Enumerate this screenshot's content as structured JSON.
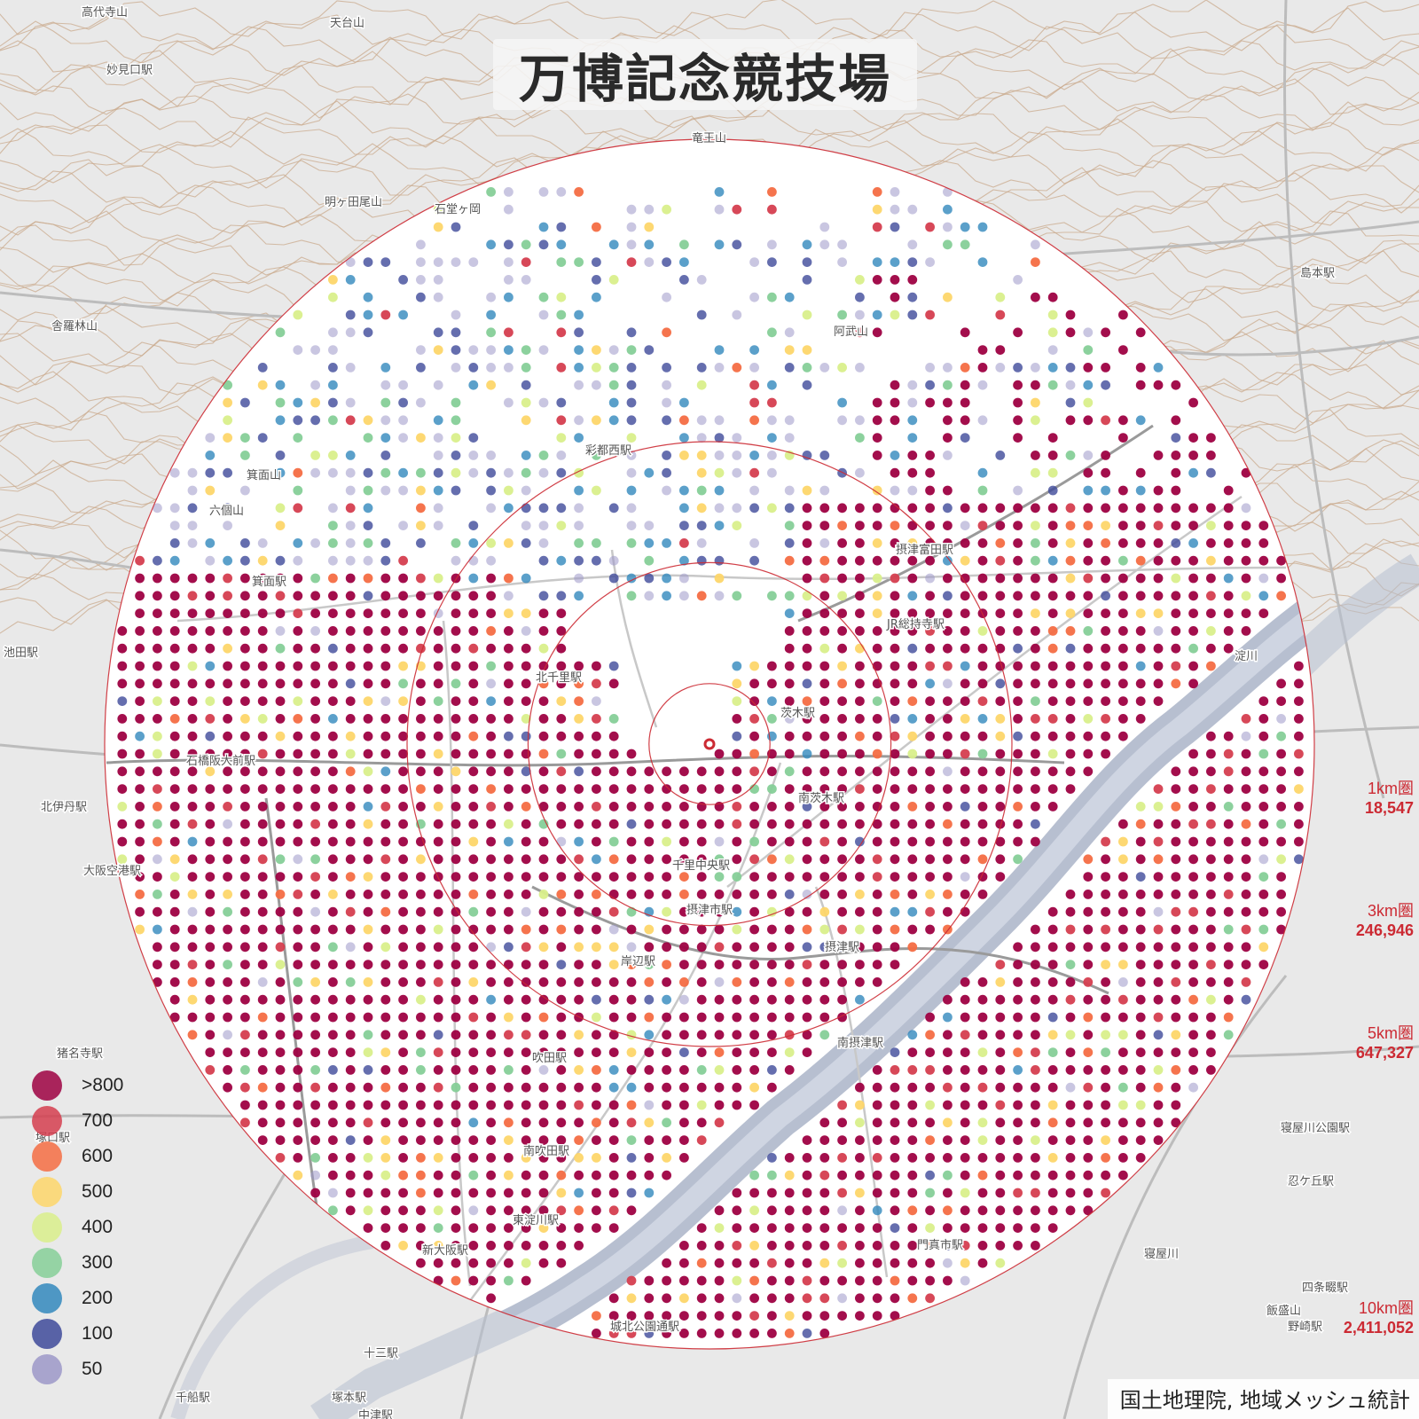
{
  "title": "万博記念競技場",
  "attribution": "国土地理院, 地域メッシュ統計",
  "legend": [
    {
      "label": ">800",
      "color": "#9e0142"
    },
    {
      "label": "700",
      "color": "#d53e4f"
    },
    {
      "label": "600",
      "color": "#f46d43"
    },
    {
      "label": "500",
      "color": "#fdd66a"
    },
    {
      "label": "400",
      "color": "#d9ef8b"
    },
    {
      "label": "300",
      "color": "#86cf98"
    },
    {
      "label": "200",
      "color": "#3288bd"
    },
    {
      "label": "100",
      "color": "#3e4a9a"
    },
    {
      "label": "50",
      "color": "#9c98c8"
    }
  ],
  "rings": [
    {
      "name": "1km圏",
      "value": "18,547",
      "radius_km": 1
    },
    {
      "name": "3km圏",
      "value": "246,946",
      "radius_km": 3
    },
    {
      "name": "5km圏",
      "value": "647,327",
      "radius_km": 5
    },
    {
      "name": "10km圏",
      "value": "2,411,052",
      "radius_km": 10
    }
  ],
  "colors": {
    "ring": "#cc2a33",
    "river": "#b7bfd0",
    "contour": "#c9a98c",
    "mask": "#ffffff",
    "background": "#e9e9e9"
  },
  "place_labels": [
    {
      "text": "高代寺山",
      "area": "outer"
    },
    {
      "text": "天台山",
      "area": "outer"
    },
    {
      "text": "妙見口駅",
      "area": "outer"
    },
    {
      "text": "竜王山",
      "area": "outer"
    },
    {
      "text": "明ヶ田尾山",
      "area": "outer"
    },
    {
      "text": "石堂ヶ岡",
      "area": "inner"
    },
    {
      "text": "舎羅林山",
      "area": "outer"
    },
    {
      "text": "阿武山",
      "area": "inner"
    },
    {
      "text": "島本駅",
      "area": "outer"
    },
    {
      "text": "箕面山",
      "area": "inner"
    },
    {
      "text": "六個山",
      "area": "inner"
    },
    {
      "text": "彩都西駅",
      "area": "inner"
    },
    {
      "text": "箕面駅",
      "area": "inner"
    },
    {
      "text": "池田駅",
      "area": "outer"
    },
    {
      "text": "石橋阪大前駅",
      "area": "inner"
    },
    {
      "text": "北千里駅",
      "area": "inner"
    },
    {
      "text": "茨木駅",
      "area": "inner"
    },
    {
      "text": "摂津富田駅",
      "area": "inner"
    },
    {
      "text": "JR総持寺駅",
      "area": "inner"
    },
    {
      "text": "北伊丹駅",
      "area": "outer"
    },
    {
      "text": "大阪空港駅",
      "area": "outer"
    },
    {
      "text": "千里中央駅",
      "area": "inner"
    },
    {
      "text": "南茨木駅",
      "area": "inner"
    },
    {
      "text": "摂津市駅",
      "area": "inner"
    },
    {
      "text": "摂津駅",
      "area": "inner"
    },
    {
      "text": "岸辺駅",
      "area": "inner"
    },
    {
      "text": "南摂津駅",
      "area": "inner"
    },
    {
      "text": "吹田駅",
      "area": "inner"
    },
    {
      "text": "南吹田駅",
      "area": "inner"
    },
    {
      "text": "東淀川駅",
      "area": "inner"
    },
    {
      "text": "新大阪駅",
      "area": "inner"
    },
    {
      "text": "門真市駅",
      "area": "inner"
    },
    {
      "text": "城北公園通駅",
      "area": "inner"
    },
    {
      "text": "猪名寺駅",
      "area": "outer"
    },
    {
      "text": "塚口駅",
      "area": "outer"
    },
    {
      "text": "十三駅",
      "area": "outer"
    },
    {
      "text": "千船駅",
      "area": "outer"
    },
    {
      "text": "塚本駅",
      "area": "outer"
    },
    {
      "text": "中津駅",
      "area": "outer"
    },
    {
      "text": "寝屋川公園駅",
      "area": "outer"
    },
    {
      "text": "忍ケ丘駅",
      "area": "outer"
    },
    {
      "text": "四条畷駅",
      "area": "outer"
    },
    {
      "text": "野崎駅",
      "area": "outer"
    },
    {
      "text": "飯盛山",
      "area": "outer"
    },
    {
      "text": "淀川",
      "area": "inner"
    },
    {
      "text": "寝屋川",
      "area": "outer"
    }
  ]
}
